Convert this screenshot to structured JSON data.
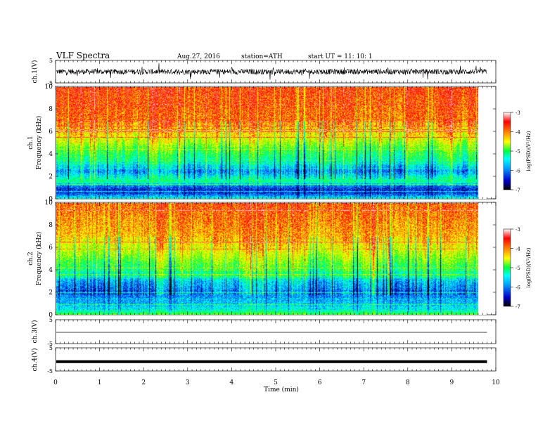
{
  "header": {
    "title": "VLF  Spectra",
    "date": "Aug.27, 2016",
    "station": "station=ATH",
    "start": "start  UT  =    11: 10: 1"
  },
  "colors": {
    "spectrum": [
      "#000066",
      "#0000ff",
      "#00a0ff",
      "#00ffff",
      "#00ff40",
      "#80ff00",
      "#ffff00",
      "#ffaa00",
      "#ff0000",
      "#ff9090"
    ],
    "trace": "#000000"
  },
  "chart_data": [
    {
      "type": "line",
      "panel": "ch1-waveform",
      "ylabel": "ch.1(V)",
      "ylim": [
        -5,
        5
      ],
      "yticks": [
        "5",
        "-5"
      ],
      "description_values": {
        "mean": 0,
        "noise_amplitude_V": 1.5
      }
    },
    {
      "type": "heatmap",
      "panel": "ch1-spectrogram",
      "ylabel": "ch.1",
      "ylabel2": "Frequency  (kHz)",
      "xlim": [
        0,
        10
      ],
      "ylim": [
        0,
        10
      ],
      "yticks": [
        "0",
        "2",
        "4",
        "6",
        "8",
        "10"
      ],
      "colorbar": {
        "label": "log(PSD)(V²/Hz)",
        "range": [
          -7,
          -3
        ],
        "ticks": [
          "-3",
          "-4",
          "-5",
          "-6",
          "-7"
        ]
      },
      "data_end_min": 9.8,
      "frequency_profile": [
        {
          "f_khz": 0.0,
          "log_psd": -5.4
        },
        {
          "f_khz": 0.5,
          "log_psd": -6.3
        },
        {
          "f_khz": 1.0,
          "log_psd": -6.4
        },
        {
          "f_khz": 1.6,
          "log_psd": -5.2
        },
        {
          "f_khz": 2.5,
          "log_psd": -6.0
        },
        {
          "f_khz": 3.5,
          "log_psd": -5.3
        },
        {
          "f_khz": 4.5,
          "log_psd": -4.9
        },
        {
          "f_khz": 5.5,
          "log_psd": -4.3
        },
        {
          "f_khz": 7.0,
          "log_psd": -3.8
        },
        {
          "f_khz": 10.0,
          "log_psd": -3.6
        }
      ]
    },
    {
      "type": "heatmap",
      "panel": "ch2-spectrogram",
      "ylabel": "ch.2",
      "ylabel2": "Frequency  (kHz)",
      "xlim": [
        0,
        10
      ],
      "ylim": [
        0,
        10
      ],
      "yticks": [
        "0",
        "2",
        "4",
        "6",
        "8",
        "10"
      ],
      "colorbar": {
        "label": "log(PSD)(V²/Hz)",
        "range": [
          -7,
          -3
        ],
        "ticks": [
          "-3",
          "-4",
          "-5",
          "-6",
          "-7"
        ]
      },
      "data_end_min": 9.8,
      "frequency_profile": [
        {
          "f_khz": 0.0,
          "log_psd": -4.8
        },
        {
          "f_khz": 0.5,
          "log_psd": -5.6
        },
        {
          "f_khz": 1.0,
          "log_psd": -5.8
        },
        {
          "f_khz": 2.0,
          "log_psd": -6.1
        },
        {
          "f_khz": 3.0,
          "log_psd": -5.8
        },
        {
          "f_khz": 4.0,
          "log_psd": -5.1
        },
        {
          "f_khz": 5.5,
          "log_psd": -4.5
        },
        {
          "f_khz": 7.0,
          "log_psd": -4.0
        },
        {
          "f_khz": 10.0,
          "log_psd": -3.7
        }
      ]
    },
    {
      "type": "line",
      "panel": "ch3-waveform",
      "ylabel": "ch.3(V)",
      "ylim": [
        -5,
        5
      ],
      "yticks": [
        "5",
        "-5"
      ],
      "level_V": -0.3
    },
    {
      "type": "line",
      "panel": "ch4-waveform",
      "ylabel": "ch.4(V)",
      "ylim": [
        -5,
        5
      ],
      "yticks": [
        "5",
        "-5"
      ],
      "level_V": -1.0
    }
  ],
  "xaxis": {
    "label": "Time  (min)",
    "ticks": [
      "0",
      "1",
      "2",
      "3",
      "4",
      "5",
      "6",
      "7",
      "8",
      "9",
      "10"
    ]
  }
}
